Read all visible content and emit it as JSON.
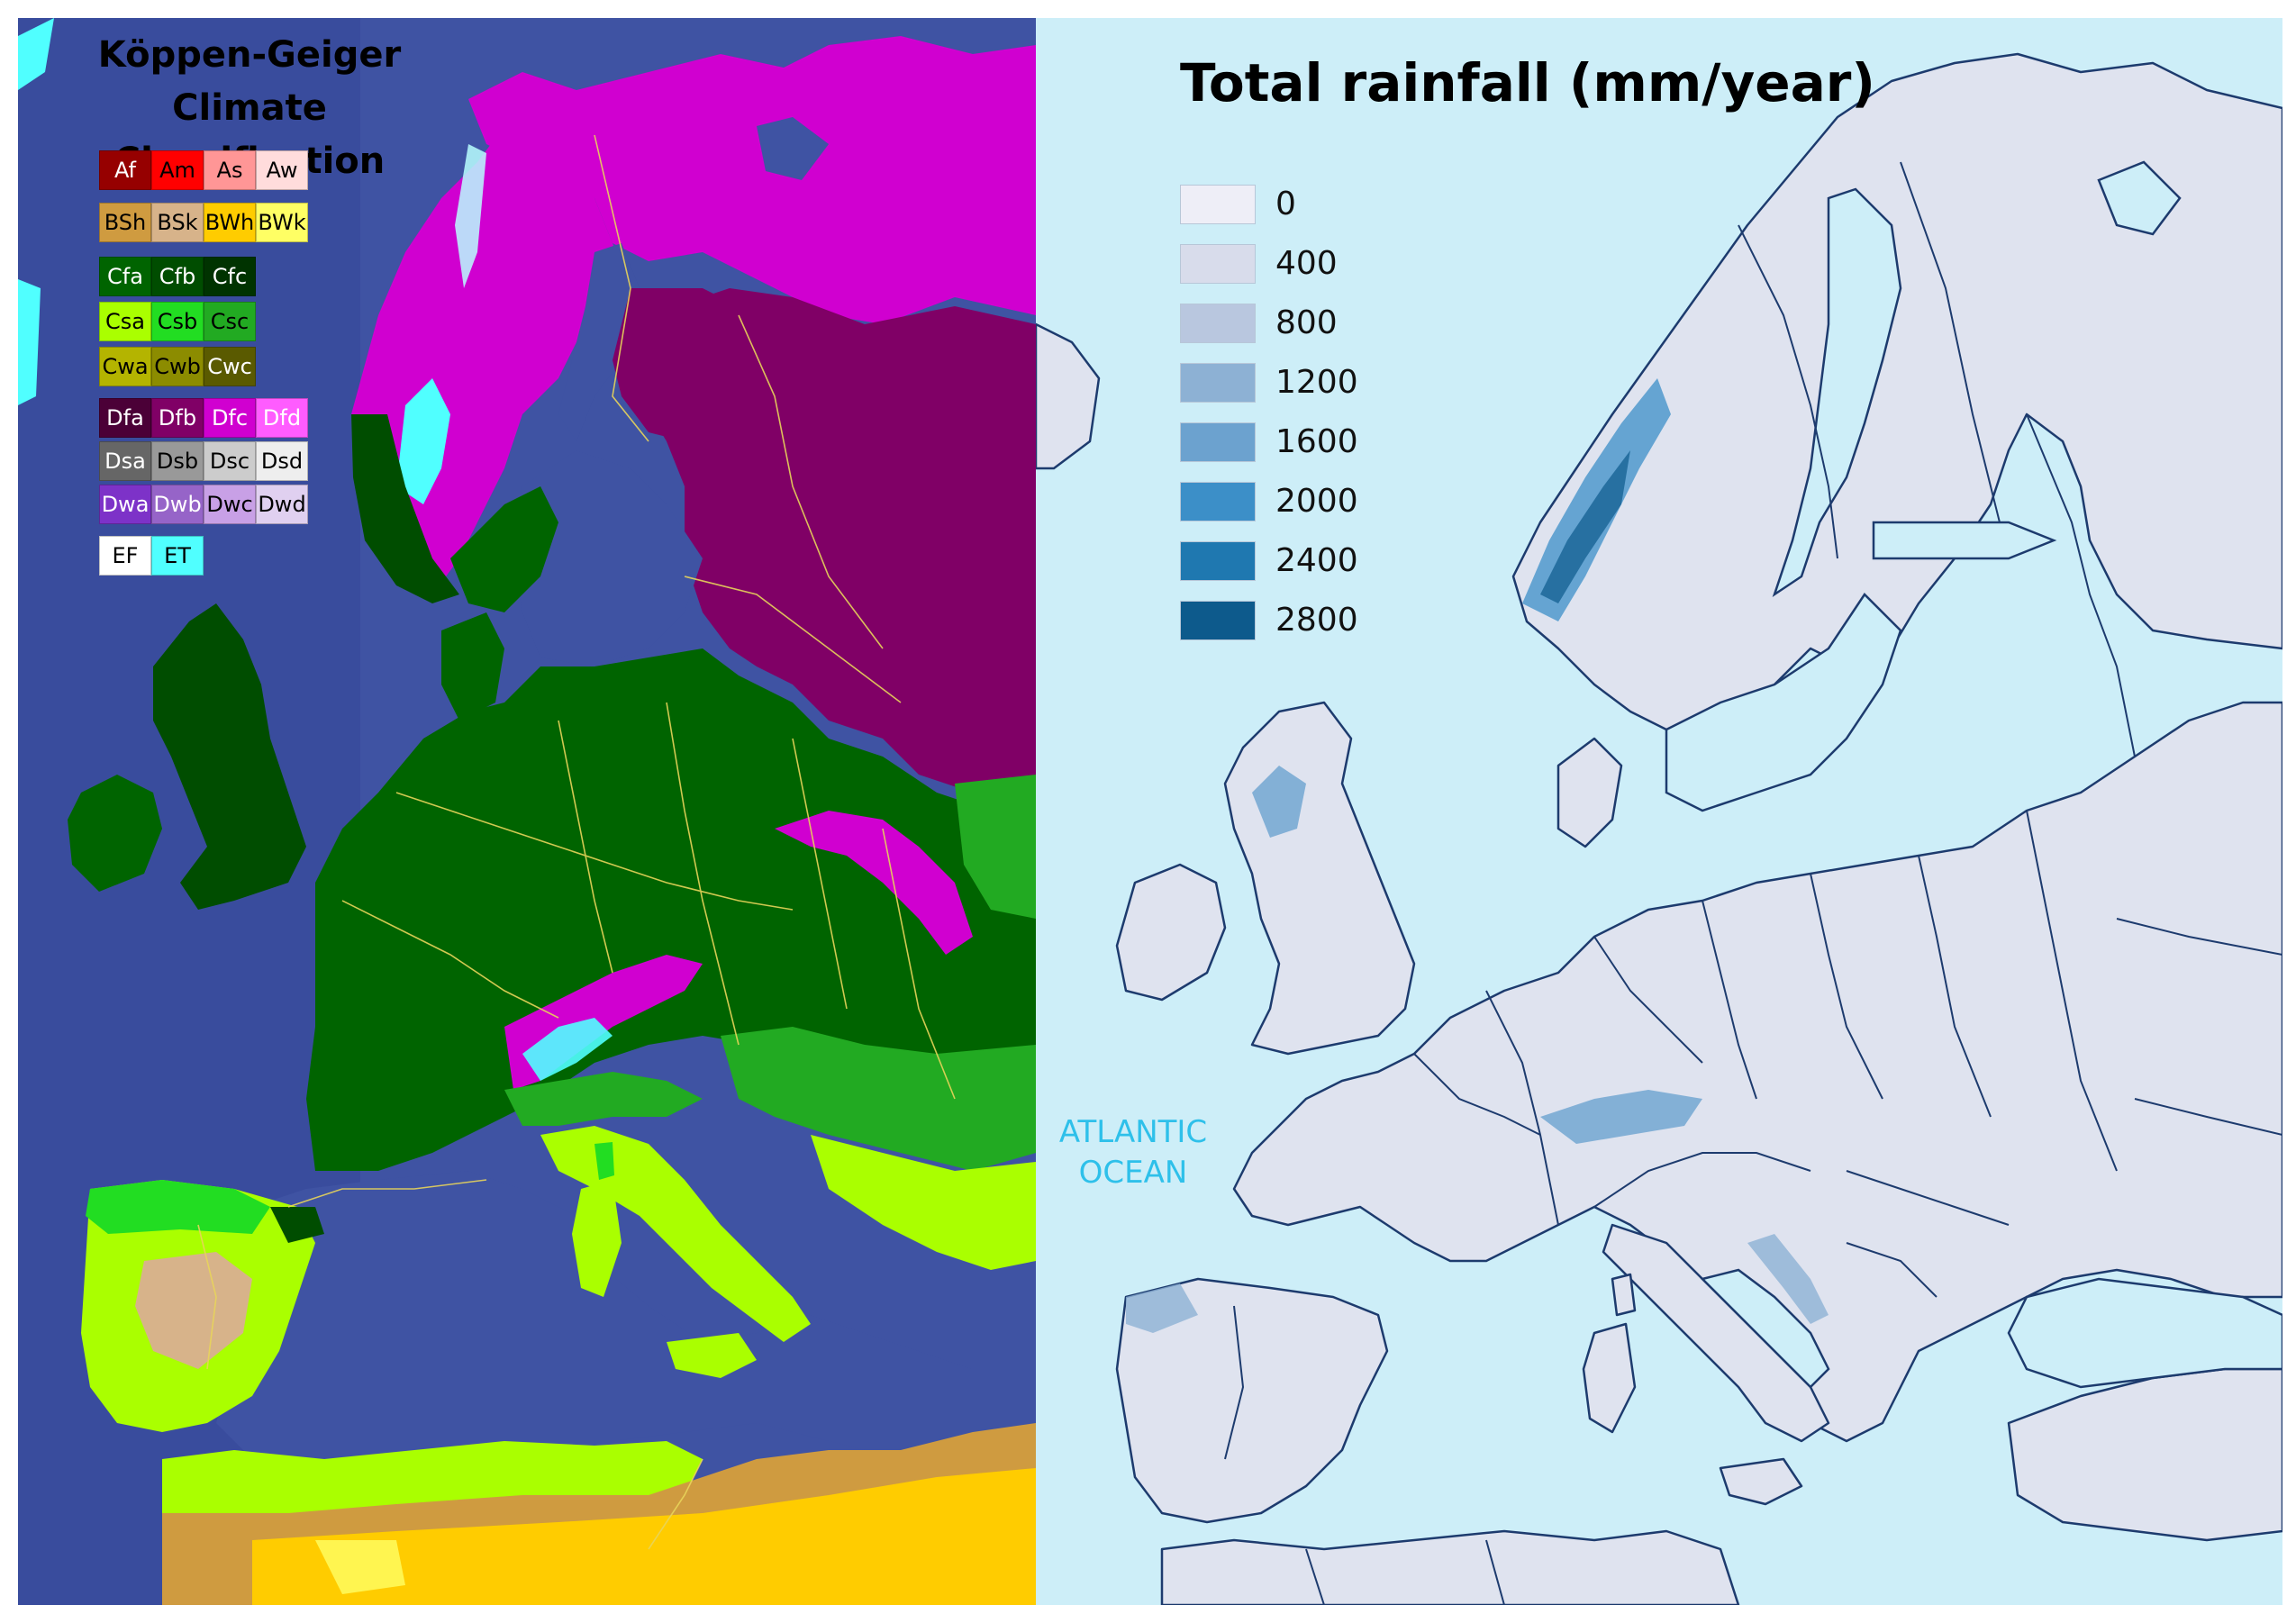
{
  "koppen": {
    "title_line1": "Köppen-Geiger",
    "title_line2": "Climate Classification",
    "legend_rows": [
      [
        {
          "code": "Af",
          "color": "#960000",
          "text_color": "#ffffff"
        },
        {
          "code": "Am",
          "color": "#ff0000",
          "text_color": "#000000"
        },
        {
          "code": "As",
          "color": "#ff9696",
          "text_color": "#000000"
        },
        {
          "code": "Aw",
          "color": "#ffdcdc",
          "text_color": "#000000"
        }
      ],
      [
        {
          "code": "BSh",
          "color": "#cf9b40",
          "text_color": "#000000"
        },
        {
          "code": "BSk",
          "color": "#d7b38a",
          "text_color": "#000000"
        },
        {
          "code": "BWh",
          "color": "#ffcc00",
          "text_color": "#000000"
        },
        {
          "code": "BWk",
          "color": "#ffff64",
          "text_color": "#000000"
        }
      ],
      [
        {
          "code": "Cfa",
          "color": "#006400",
          "text_color": "#ffffff"
        },
        {
          "code": "Cfb",
          "color": "#004d00",
          "text_color": "#ffffff"
        },
        {
          "code": "Cfc",
          "color": "#003300",
          "text_color": "#ffffff"
        }
      ],
      [
        {
          "code": "Csa",
          "color": "#aaff00",
          "text_color": "#000000"
        },
        {
          "code": "Csb",
          "color": "#22dd22",
          "text_color": "#000000"
        },
        {
          "code": "Csc",
          "color": "#22aa22",
          "text_color": "#000000"
        }
      ],
      [
        {
          "code": "Cwa",
          "color": "#b4b400",
          "text_color": "#000000"
        },
        {
          "code": "Cwb",
          "color": "#8c8c00",
          "text_color": "#000000"
        },
        {
          "code": "Cwc",
          "color": "#5a5a00",
          "text_color": "#ffffff"
        }
      ],
      [
        {
          "code": "Dfa",
          "color": "#4b0037",
          "text_color": "#ffffff"
        },
        {
          "code": "Dfb",
          "color": "#800066",
          "text_color": "#ffffff"
        },
        {
          "code": "Dfc",
          "color": "#d000d0",
          "text_color": "#ffffff"
        },
        {
          "code": "Dfd",
          "color": "#ff5cff",
          "text_color": "#ffffff"
        }
      ],
      [
        {
          "code": "Dsa",
          "color": "#666666",
          "text_color": "#ffffff"
        },
        {
          "code": "Dsb",
          "color": "#999999",
          "text_color": "#000000"
        },
        {
          "code": "Dsc",
          "color": "#cccccc",
          "text_color": "#000000"
        },
        {
          "code": "Dsd",
          "color": "#eeeeee",
          "text_color": "#000000"
        }
      ],
      [
        {
          "code": "Dwa",
          "color": "#7d32c8",
          "text_color": "#ffffff"
        },
        {
          "code": "Dwb",
          "color": "#9664c8",
          "text_color": "#ffffff"
        },
        {
          "code": "Dwc",
          "color": "#c8a0e6",
          "text_color": "#000000"
        },
        {
          "code": "Dwd",
          "color": "#e0d0f0",
          "text_color": "#000000"
        }
      ],
      [
        {
          "code": "EF",
          "color": "#ffffff",
          "text_color": "#000000"
        },
        {
          "code": "ET",
          "color": "#50ffff",
          "text_color": "#000000"
        }
      ]
    ]
  },
  "rainfall": {
    "title": "Total rainfall  (mm/year)",
    "legend": [
      {
        "label": "0",
        "color": "#eeeef7"
      },
      {
        "label": "400",
        "color": "#d8dceb"
      },
      {
        "label": "800",
        "color": "#b9c7df"
      },
      {
        "label": "1200",
        "color": "#8db1d4"
      },
      {
        "label": "1600",
        "color": "#6ca2cf"
      },
      {
        "label": "2000",
        "color": "#3c8fc8"
      },
      {
        "label": "2400",
        "color": "#1f78b0"
      },
      {
        "label": "2800",
        "color": "#0d5a8c"
      }
    ],
    "ocean_label_line1": "ATLANTIC",
    "ocean_label_line2": "OCEAN"
  },
  "colors": {
    "sea_koppen": "#3f53a3",
    "land_base_rain": "#dfe3ef",
    "ocean_rain": "#cdeef8",
    "border_koppen": "#e8d45a",
    "border_rain": "#1d3b6e"
  }
}
